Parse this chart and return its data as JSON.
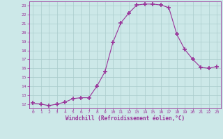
{
  "x": [
    0,
    1,
    2,
    3,
    4,
    5,
    6,
    7,
    8,
    9,
    10,
    11,
    12,
    13,
    14,
    15,
    16,
    17,
    18,
    19,
    20,
    21,
    22,
    23
  ],
  "y": [
    12.1,
    12.0,
    11.8,
    12.0,
    12.2,
    12.6,
    12.7,
    12.7,
    14.0,
    15.6,
    18.9,
    21.1,
    22.2,
    23.1,
    23.2,
    23.2,
    23.1,
    22.8,
    19.8,
    18.1,
    17.0,
    16.1,
    16.0,
    16.2
  ],
  "line_color": "#993399",
  "marker": "+",
  "marker_size": 4,
  "marker_lw": 1.2,
  "bg_color": "#cce8e8",
  "grid_color": "#aacccc",
  "xlabel": "Windchill (Refroidissement éolien,°C)",
  "xlabel_color": "#993399",
  "tick_color": "#993399",
  "ylim": [
    11.5,
    23.5
  ],
  "xlim": [
    -0.5,
    23.5
  ],
  "yticks": [
    12,
    13,
    14,
    15,
    16,
    17,
    18,
    19,
    20,
    21,
    22,
    23
  ],
  "xticks": [
    0,
    1,
    2,
    3,
    4,
    5,
    6,
    7,
    8,
    9,
    10,
    11,
    12,
    13,
    14,
    15,
    16,
    17,
    18,
    19,
    20,
    21,
    22,
    23
  ]
}
